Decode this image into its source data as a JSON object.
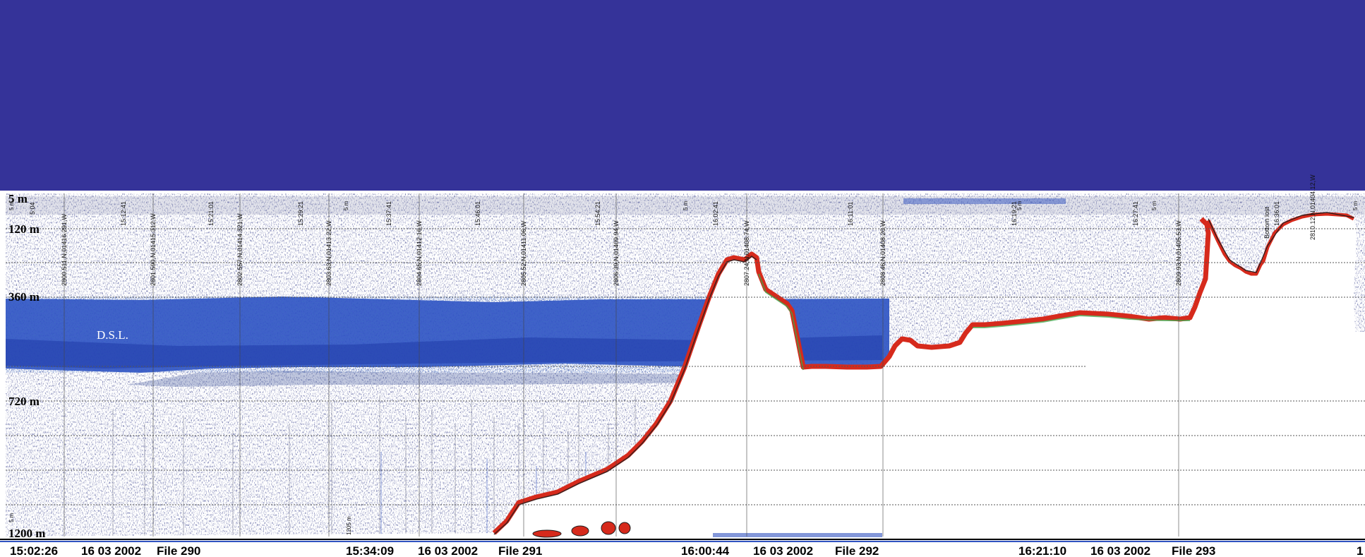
{
  "depth_scale": {
    "labels": [
      "5 m",
      "120 m",
      "360 m",
      "720 m",
      "1200 m"
    ]
  },
  "layer_label": "D.S.L.",
  "time_marks": [
    "5:04",
    "15:12:41",
    "15:21:01",
    "15:29:21",
    "15:37:41",
    "15:46:01",
    "15:54:21",
    "16:02:41",
    "16:11:01",
    "16:19:21",
    "16:27:41",
    "16:36:01"
  ],
  "range_marks": [
    "5 m",
    "5 m",
    "5 m",
    "5 m",
    "5 m",
    "5 m"
  ],
  "bottom_marks": [
    "5 m",
    "1205 m"
  ],
  "positions": [
    "2800.511,N,01416.291,W",
    "2801.590,N,01415.312,W",
    "2802.557,N,01414.321,W",
    "2803.63,N,01413.22,W",
    "2804.65,N,01412.16,W",
    "2805.52,N,01411.06,W",
    "2806.39,N,01409.94,W",
    "2807.24,N,01408.74,W",
    "2808.46,N,01408.20,W",
    "2809.93,N,01405.53,W",
    "2810.12,N,01404.12,W"
  ],
  "bottom_lost": "Bottom lost",
  "files": [
    {
      "time": "15:02:26",
      "date": "16 03 2002",
      "file": "File 290"
    },
    {
      "time": "15:34:09",
      "date": "16 03 2002",
      "file": "File 291"
    },
    {
      "time": "16:00:44",
      "date": "16 03 2002",
      "file": "File 292"
    },
    {
      "time": "16:21:10",
      "date": "16 03 2002",
      "file": "File 293"
    }
  ],
  "edge_label": "1",
  "colors": {
    "header": "#353399",
    "dsl": "#2f52c4",
    "bottom_echo": "#d62a1c",
    "scatter": "#6b6f86"
  }
}
